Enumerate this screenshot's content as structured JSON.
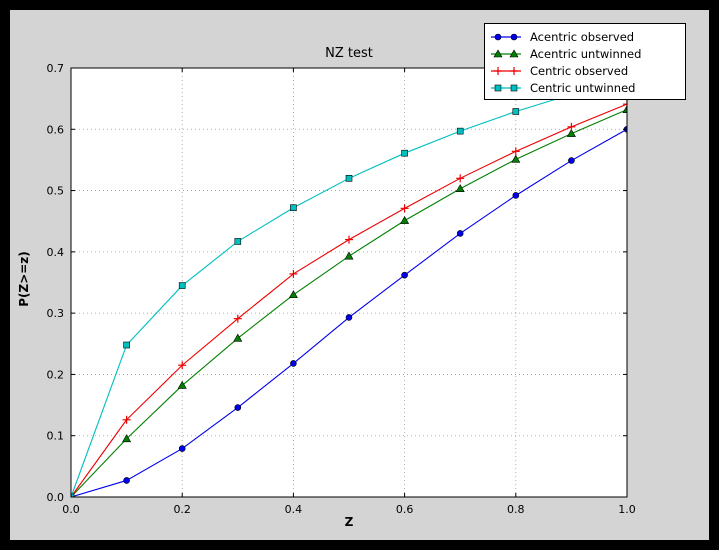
{
  "window": {
    "background": "#000000",
    "figure_background": "#d4d4d4",
    "axes_background": "#ffffff"
  },
  "chart_data": {
    "type": "line",
    "title": "NZ test",
    "xlabel": "Z",
    "ylabel": "P(Z>=z)",
    "xlim": [
      0.0,
      1.0
    ],
    "ylim": [
      0.0,
      0.7
    ],
    "xticks": [
      0.0,
      0.2,
      0.4,
      0.6,
      0.8,
      1.0
    ],
    "xtick_labels": [
      "0.0",
      "0.2",
      "0.4",
      "0.6",
      "0.8",
      "1.0"
    ],
    "yticks": [
      0.0,
      0.1,
      0.2,
      0.3,
      0.4,
      0.5,
      0.6,
      0.7
    ],
    "ytick_labels": [
      "0.0",
      "0.1",
      "0.2",
      "0.3",
      "0.4",
      "0.5",
      "0.6",
      "0.7"
    ],
    "grid": true,
    "legend_position": "upper right",
    "x": [
      0.0,
      0.1,
      0.2,
      0.3,
      0.4,
      0.5,
      0.6,
      0.7,
      0.8,
      0.9,
      1.0
    ],
    "series": [
      {
        "name": "Acentric observed",
        "color": "#0000ee",
        "marker": "circle",
        "values": [
          0.0,
          0.027,
          0.079,
          0.146,
          0.218,
          0.293,
          0.362,
          0.43,
          0.492,
          0.549,
          0.6
        ]
      },
      {
        "name": "Acentric untwinned",
        "color": "#008000",
        "marker": "triangle",
        "values": [
          0.0,
          0.095,
          0.182,
          0.259,
          0.33,
          0.393,
          0.451,
          0.503,
          0.551,
          0.593,
          0.632
        ]
      },
      {
        "name": "Centric observed",
        "color": "#ee0000",
        "marker": "plus",
        "values": [
          0.0,
          0.126,
          0.215,
          0.291,
          0.364,
          0.42,
          0.471,
          0.52,
          0.564,
          0.604,
          0.641
        ]
      },
      {
        "name": "Centric untwinned",
        "color": "#00bfbf",
        "marker": "square",
        "values": [
          0.0,
          0.248,
          0.345,
          0.417,
          0.472,
          0.52,
          0.561,
          0.597,
          0.629,
          0.657,
          0.683
        ]
      }
    ]
  }
}
